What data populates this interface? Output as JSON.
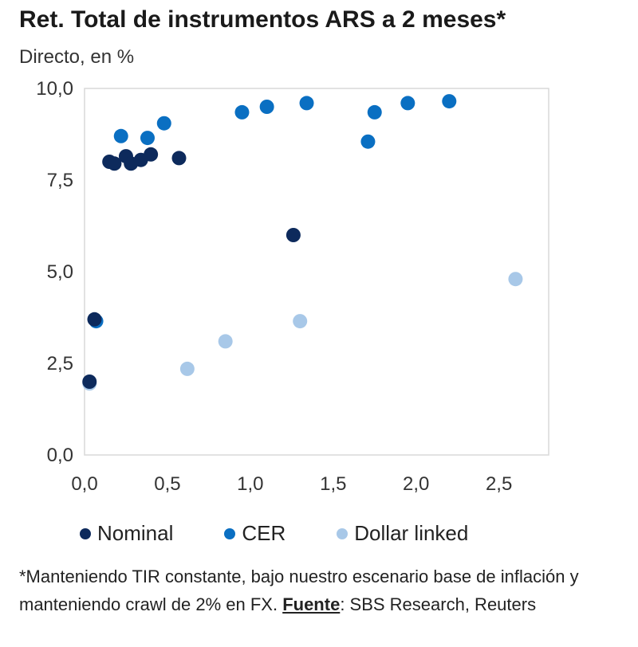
{
  "title": "Ret. Total de instrumentos ARS a 2 meses*",
  "subtitle": "Directo, en %",
  "footnote": {
    "text_before": "*Manteniendo TIR constante, bajo nuestro escenario base de inflación y manteniendo crawl de 2% en FX. ",
    "source_label": "Fuente",
    "text_after": ": SBS Research, Reuters"
  },
  "chart_data": {
    "type": "scatter",
    "title": "Ret. Total de instrumentos ARS a 2 meses*",
    "subtitle": "Directo, en %",
    "xlabel": "",
    "ylabel": "",
    "xlim": [
      0,
      2.8
    ],
    "ylim": [
      0,
      10
    ],
    "x_ticks": [
      "0,0",
      "0,5",
      "1,0",
      "1,5",
      "2,0",
      "2,5"
    ],
    "y_ticks": [
      "0,0",
      "2,5",
      "5,0",
      "7,5",
      "10,0"
    ],
    "legend_position": "bottom",
    "grid": false,
    "series": [
      {
        "name": "Nominal",
        "color": "#0d2a5c",
        "points": [
          {
            "x": 0.03,
            "y": 2.0
          },
          {
            "x": 0.06,
            "y": 3.7
          },
          {
            "x": 0.15,
            "y": 8.0
          },
          {
            "x": 0.18,
            "y": 7.95
          },
          {
            "x": 0.25,
            "y": 8.15
          },
          {
            "x": 0.28,
            "y": 7.95
          },
          {
            "x": 0.34,
            "y": 8.05
          },
          {
            "x": 0.4,
            "y": 8.2
          },
          {
            "x": 0.57,
            "y": 8.1
          },
          {
            "x": 1.26,
            "y": 6.0
          }
        ]
      },
      {
        "name": "CER",
        "color": "#0a6fc2",
        "points": [
          {
            "x": 0.07,
            "y": 3.65
          },
          {
            "x": 0.22,
            "y": 8.7
          },
          {
            "x": 0.38,
            "y": 8.65
          },
          {
            "x": 0.48,
            "y": 9.05
          },
          {
            "x": 0.95,
            "y": 9.35
          },
          {
            "x": 1.1,
            "y": 9.5
          },
          {
            "x": 1.34,
            "y": 9.6
          },
          {
            "x": 1.71,
            "y": 8.55
          },
          {
            "x": 1.75,
            "y": 9.35
          },
          {
            "x": 1.95,
            "y": 9.6
          },
          {
            "x": 2.2,
            "y": 9.65
          }
        ]
      },
      {
        "name": "Dollar linked",
        "color": "#a8c8e8",
        "points": [
          {
            "x": 0.03,
            "y": 1.95
          },
          {
            "x": 0.62,
            "y": 2.35
          },
          {
            "x": 0.85,
            "y": 3.1
          },
          {
            "x": 1.3,
            "y": 3.65
          },
          {
            "x": 2.6,
            "y": 4.8
          }
        ]
      }
    ]
  }
}
